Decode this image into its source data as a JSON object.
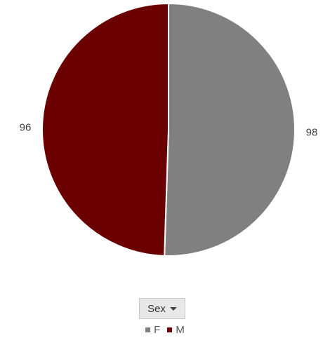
{
  "chart_data": {
    "type": "pie",
    "categories": [
      "F",
      "M"
    ],
    "values": [
      98,
      96
    ],
    "data_labels": [
      "98",
      "96"
    ],
    "colors": [
      "#808080",
      "#6b0000"
    ],
    "start_angle_deg": 0,
    "direction": "clockwise",
    "legend": {
      "position": "bottom",
      "entries": [
        "F",
        "M"
      ]
    }
  },
  "field_button": {
    "label": "Sex",
    "icon": "dropdown-arrow-icon"
  }
}
